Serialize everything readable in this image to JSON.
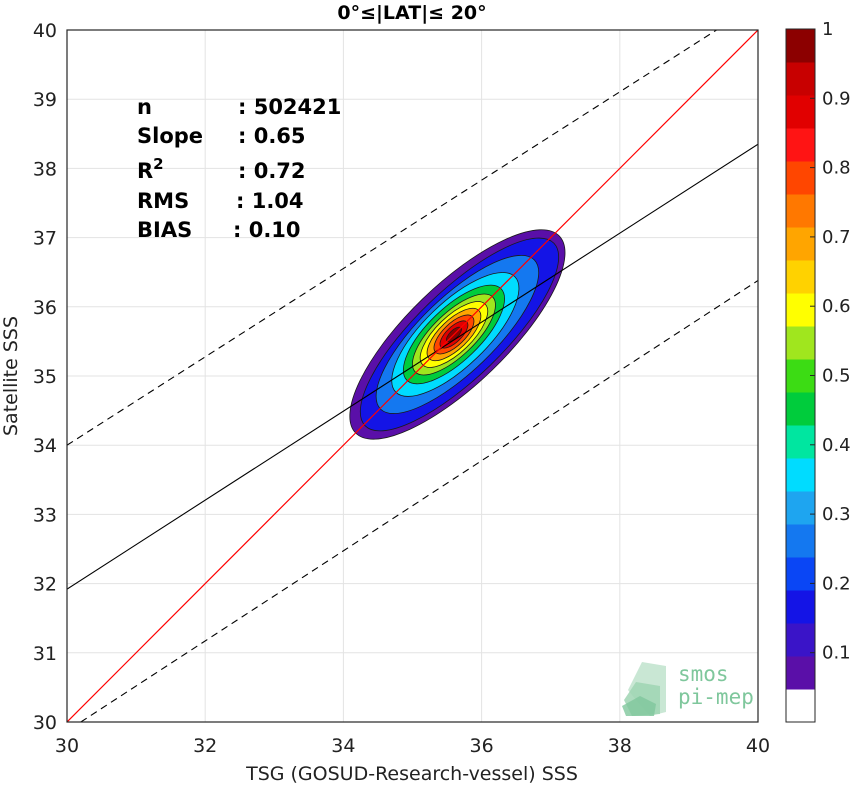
{
  "chart_data": {
    "type": "contour",
    "title": "0°≤|LAT|≤ 20°",
    "xlabel": "TSG (GOSUD-Research-vessel) SSS",
    "ylabel": "Satellite SSS",
    "xlim": [
      30,
      40
    ],
    "ylim": [
      30,
      40
    ],
    "xticks": [
      "30",
      "32",
      "34",
      "36",
      "38",
      "40"
    ],
    "yticks": [
      "30",
      "31",
      "32",
      "33",
      "34",
      "35",
      "36",
      "37",
      "38",
      "39",
      "40"
    ],
    "grid": true,
    "stats": [
      {
        "label": "n",
        "value": ": 502421"
      },
      {
        "label": "Slope",
        "value": ": 0.65"
      },
      {
        "label": "R",
        "sup": "2",
        "value": ": 0.72"
      },
      {
        "label": "RMS",
        "value": ": 1.04"
      },
      {
        "label": "BIAS",
        "value": ": 0.10"
      }
    ],
    "lines": {
      "one_to_one": {
        "color": "#ff0000",
        "points": [
          [
            30,
            30
          ],
          [
            40,
            40
          ]
        ]
      },
      "regression": {
        "color": "#000000",
        "slope": 0.65,
        "points": [
          [
            30,
            31.92
          ],
          [
            40,
            38.35
          ]
        ]
      },
      "bounds": [
        {
          "style": "dashed",
          "points": [
            [
              30,
              34.0
            ],
            [
              39.4,
              40.0
            ]
          ]
        },
        {
          "style": "dashed",
          "points": [
            [
              30.2,
              30.0
            ],
            [
              40,
              36.38
            ]
          ]
        }
      ]
    },
    "density_peak": {
      "x": 35.6,
      "y": 35.6
    },
    "colorbar": {
      "range": [
        0,
        1
      ],
      "ticks": [
        "0.1",
        "0.2",
        "0.3",
        "0.4",
        "0.5",
        "0.6",
        "0.7",
        "0.8",
        "0.9",
        "1"
      ],
      "colors": [
        "#ffffff",
        "#5a0fa8",
        "#3a14c8",
        "#1414e6",
        "#0a46f5",
        "#1478f0",
        "#1ea5f0",
        "#00dcff",
        "#00e6a0",
        "#00cc3c",
        "#3cdc14",
        "#a0e61e",
        "#ffff00",
        "#ffd200",
        "#ffa500",
        "#ff7800",
        "#ff4600",
        "#ff1414",
        "#e10000",
        "#c80000",
        "#8c0000"
      ]
    },
    "logo": [
      "smos",
      "pi-mep"
    ]
  }
}
